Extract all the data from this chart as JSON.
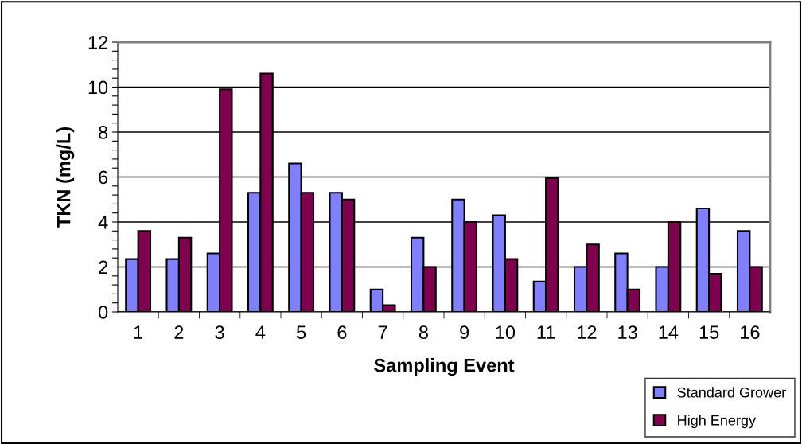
{
  "chart_data": {
    "type": "bar",
    "xlabel": "Sampling Event",
    "ylabel": "TKN (mg/L)",
    "categories": [
      "1",
      "2",
      "3",
      "4",
      "5",
      "6",
      "7",
      "8",
      "9",
      "10",
      "11",
      "12",
      "13",
      "14",
      "15",
      "16"
    ],
    "series": [
      {
        "name": "Standard Grower",
        "color": "#8080ff",
        "values": [
          2.35,
          2.35,
          2.6,
          5.3,
          6.6,
          5.3,
          1.0,
          3.3,
          5.0,
          4.3,
          1.35,
          2.0,
          2.6,
          2.0,
          4.6,
          3.6
        ]
      },
      {
        "name": "High Energy",
        "color": "#800050",
        "values": [
          3.6,
          3.3,
          9.9,
          10.6,
          5.3,
          5.0,
          0.3,
          2.0,
          4.0,
          2.35,
          5.95,
          3.0,
          1.0,
          4.0,
          1.7,
          2.0
        ]
      }
    ],
    "ylim": [
      0,
      12
    ],
    "yticks": [
      0,
      {
        "value": 0.4,
        "label": null
      },
      {
        "value": 0.8,
        "label": null
      },
      {
        "value": 1.2,
        "label": null
      },
      {
        "value": 1.6,
        "label": null
      },
      2,
      {
        "value": 2.4,
        "label": null
      },
      {
        "value": 2.8,
        "label": null
      },
      {
        "value": 3.2,
        "label": null
      },
      {
        "value": 3.6,
        "label": null
      },
      4,
      {
        "value": 4.4,
        "label": null
      },
      {
        "value": 4.8,
        "label": null
      },
      {
        "value": 5.2,
        "label": null
      },
      {
        "value": 5.6,
        "label": null
      },
      6,
      {
        "value": 6.4,
        "label": null
      },
      {
        "value": 6.8,
        "label": null
      },
      {
        "value": 7.2,
        "label": null
      },
      {
        "value": 7.6,
        "label": null
      },
      8,
      {
        "value": 8.4,
        "label": null
      },
      {
        "value": 8.8,
        "label": null
      },
      {
        "value": 9.2,
        "label": null
      },
      {
        "value": 9.6,
        "label": null
      },
      10,
      {
        "value": 10.4,
        "label": null
      },
      {
        "value": 10.8,
        "label": null
      },
      {
        "value": 11.2,
        "label": null
      },
      {
        "value": 11.6,
        "label": null
      },
      12
    ],
    "grid": "y",
    "legend": "bottom right"
  }
}
